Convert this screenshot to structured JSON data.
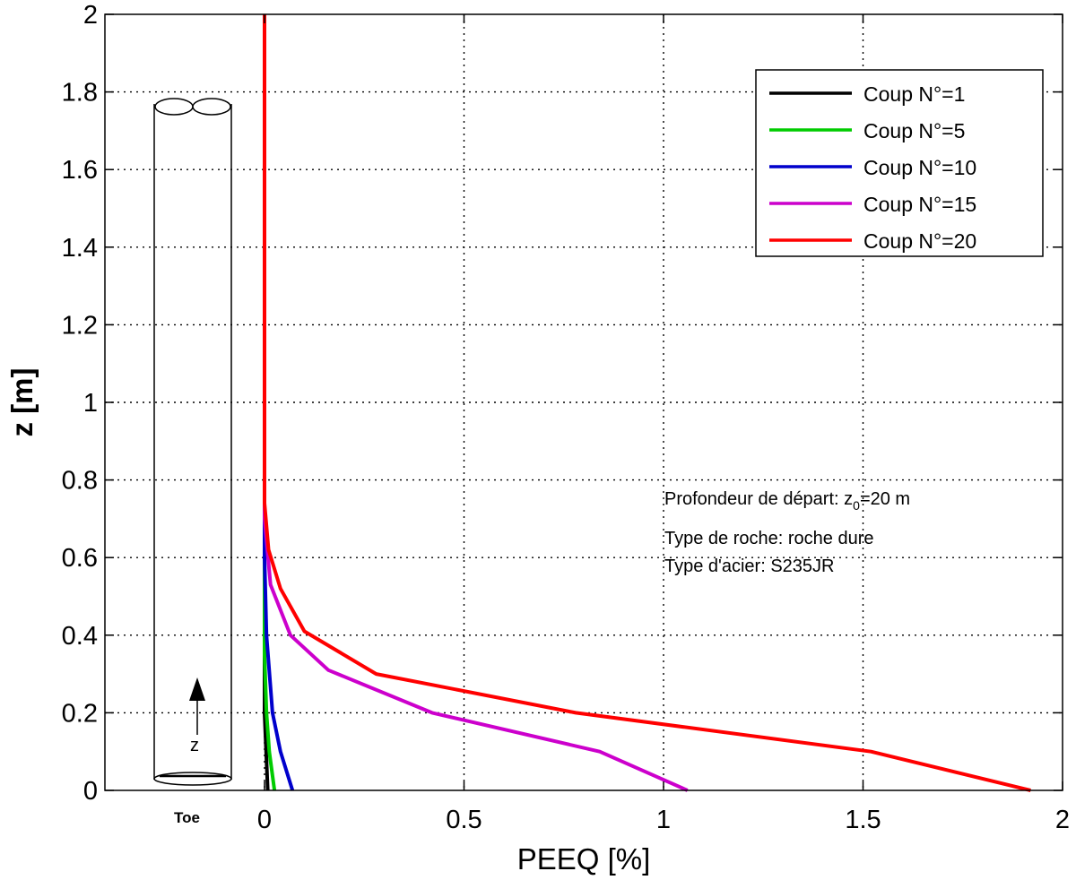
{
  "chart_data": {
    "type": "line",
    "xlabel": "PEEQ [%]",
    "ylabel": "z [m]",
    "xlim": [
      -0.4,
      2
    ],
    "ylim": [
      0,
      2
    ],
    "xticks": [
      "0",
      "0.5",
      "1",
      "1.5",
      "2"
    ],
    "yticks": [
      "0",
      "0.2",
      "0.4",
      "0.6",
      "0.8",
      "1",
      "1.2",
      "1.4",
      "1.6",
      "1.8",
      "2"
    ],
    "xtick_values": [
      0,
      0.5,
      1,
      1.5,
      2
    ],
    "ytick_values": [
      0,
      0.2,
      0.4,
      0.6,
      0.8,
      1,
      1.2,
      1.4,
      1.6,
      1.8,
      2
    ],
    "grid": true,
    "legend_position": "top-right",
    "series": [
      {
        "name": "Coup N°=1",
        "color": "#000000",
        "points": [
          [
            0.008,
            0
          ],
          [
            0.004,
            0.1
          ],
          [
            0.0,
            0.2
          ],
          [
            0.0,
            2.0
          ]
        ]
      },
      {
        "name": "Coup N°=5",
        "color": "#00cc00",
        "points": [
          [
            0.025,
            0
          ],
          [
            0.012,
            0.1
          ],
          [
            0.005,
            0.2
          ],
          [
            0.0,
            0.35
          ],
          [
            0.0,
            2.0
          ]
        ]
      },
      {
        "name": "Coup N°=10",
        "color": "#0000cc",
        "points": [
          [
            0.07,
            0
          ],
          [
            0.04,
            0.1
          ],
          [
            0.02,
            0.2
          ],
          [
            0.005,
            0.4
          ],
          [
            0.0,
            0.6
          ],
          [
            0.0,
            2.0
          ]
        ]
      },
      {
        "name": "Coup N°=15",
        "color": "#cc00cc",
        "points": [
          [
            1.06,
            0
          ],
          [
            0.84,
            0.1
          ],
          [
            0.42,
            0.2
          ],
          [
            0.16,
            0.31
          ],
          [
            0.065,
            0.4
          ],
          [
            0.015,
            0.53
          ],
          [
            0.0,
            0.7
          ],
          [
            0.0,
            2.0
          ]
        ]
      },
      {
        "name": "Coup N°=20",
        "color": "#ff0000",
        "points": [
          [
            1.92,
            0
          ],
          [
            1.52,
            0.1
          ],
          [
            0.78,
            0.2
          ],
          [
            0.28,
            0.3
          ],
          [
            0.1,
            0.41
          ],
          [
            0.04,
            0.52
          ],
          [
            0.01,
            0.62
          ],
          [
            0.0,
            0.74
          ],
          [
            0.0,
            2.0
          ]
        ]
      }
    ],
    "annotations": [
      {
        "type": "text",
        "text": "Profondeur de départ: ",
        "subscript": "0",
        "z_prefix": "z",
        "suffix": "=20 m"
      },
      {
        "type": "text",
        "text": "Type de roche: roche dure"
      },
      {
        "type": "text",
        "text": "Type d'acier: S235JR"
      }
    ],
    "pile_sketch": {
      "toe_label": "Toe",
      "arrow_label": "z"
    }
  }
}
